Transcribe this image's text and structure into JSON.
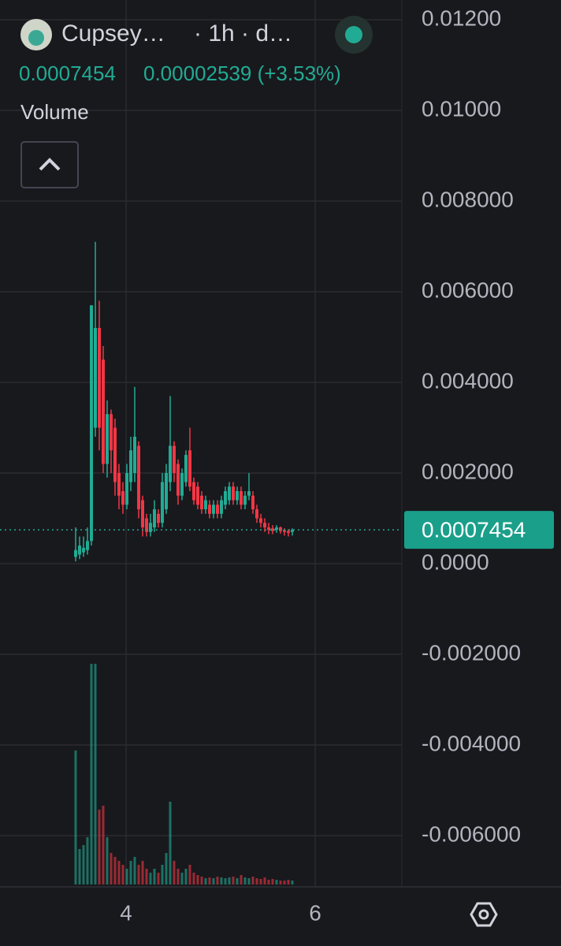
{
  "chart_data": {
    "type": "candlestick",
    "symbol": "Cupsey…",
    "interval": "· 1h · d…",
    "last_price": 0.0007454,
    "change": "0.00002539 (+3.53%)",
    "volume_label": "Volume",
    "up_color": "#22ab94",
    "down_color": "#f23645",
    "grid": true,
    "xlim": [
      2.6667,
      6.9167
    ],
    "xticks": [
      4,
      6
    ],
    "ylim": [
      0.012435,
      -0.00713
    ],
    "yticks": [
      {
        "value": 0.012,
        "label": "0.01200"
      },
      {
        "value": 0.01,
        "label": "0.01000"
      },
      {
        "value": 0.008,
        "label": "0.008000"
      },
      {
        "value": 0.006,
        "label": "0.006000"
      },
      {
        "value": 0.004,
        "label": "0.004000"
      },
      {
        "value": 0.002,
        "label": "0.002000"
      },
      {
        "value": 0,
        "label": "0.0000"
      },
      {
        "value": -0.002,
        "label": "-0.002000"
      },
      {
        "value": -0.004,
        "label": "-0.004000"
      },
      {
        "value": -0.006,
        "label": "-0.006000"
      }
    ],
    "x": [
      3.4667,
      3.5083,
      3.55,
      3.5917,
      3.6333,
      3.675,
      3.7167,
      3.7583,
      3.8,
      3.8417,
      3.8833,
      3.925,
      3.9667,
      4.0083,
      4.05,
      4.0917,
      4.1333,
      4.175,
      4.2167,
      4.2583,
      4.3,
      4.3417,
      4.3833,
      4.425,
      4.4667,
      4.5083,
      4.55,
      4.5917,
      4.6333,
      4.675,
      4.7167,
      4.7583,
      4.8,
      4.8417,
      4.8833,
      4.925,
      4.9667,
      5.0083,
      5.05,
      5.0917,
      5.1333,
      5.175,
      5.2167,
      5.2583,
      5.3,
      5.3417,
      5.3833,
      5.425,
      5.4667,
      5.5083,
      5.55,
      5.5917,
      5.6333,
      5.675,
      5.7167,
      5.7583
    ],
    "open": [
      0.00015,
      0.0002,
      0.00025,
      0.0003,
      0.0005,
      0.003,
      0.0052,
      0.0045,
      0.0022,
      0.0033,
      0.003,
      0.002,
      0.0016,
      0.0013,
      0.0018,
      0.002,
      0.0026,
      0.0014,
      0.001,
      0.0007,
      0.0008,
      0.0011,
      0.0009,
      0.0012,
      0.0018,
      0.0026,
      0.0022,
      0.0015,
      0.0018,
      0.0025,
      0.0018,
      0.0017,
      0.0015,
      0.0012,
      0.0013,
      0.0011,
      0.0013,
      0.0011,
      0.0013,
      0.0014,
      0.0017,
      0.0014,
      0.0016,
      0.0013,
      0.0015,
      0.0015,
      0.0012,
      0.001,
      0.0009,
      0.0008,
      0.00078,
      0.00075,
      0.0008,
      0.00074,
      0.00072,
      0.0007
    ],
    "high": [
      0.0008,
      0.0006,
      0.0006,
      0.0008,
      0.0057,
      0.0071,
      0.0058,
      0.0048,
      0.0036,
      0.0034,
      0.0032,
      0.0022,
      0.0018,
      0.0022,
      0.0028,
      0.0039,
      0.0027,
      0.0015,
      0.0011,
      0.0011,
      0.0014,
      0.0012,
      0.002,
      0.0022,
      0.0037,
      0.0027,
      0.0023,
      0.0021,
      0.0025,
      0.003,
      0.0019,
      0.0018,
      0.0016,
      0.0015,
      0.0014,
      0.0014,
      0.0014,
      0.0015,
      0.0017,
      0.0018,
      0.0018,
      0.0017,
      0.0017,
      0.0016,
      0.002,
      0.0016,
      0.0013,
      0.0011,
      0.001,
      0.0009,
      0.00085,
      0.00085,
      0.00082,
      0.00078,
      0.00076,
      0.00078
    ],
    "low": [
      5e-05,
      0.0001,
      0.00015,
      0.0002,
      0.0004,
      0.0028,
      0.0025,
      0.002,
      0.0019,
      0.002,
      0.0015,
      0.0012,
      0.0011,
      0.0012,
      0.0016,
      0.0018,
      0.001,
      0.0006,
      0.0006,
      0.0006,
      0.0007,
      0.0008,
      0.0008,
      0.0011,
      0.0016,
      0.0018,
      0.0013,
      0.0014,
      0.0017,
      0.0016,
      0.0013,
      0.0012,
      0.0011,
      0.0011,
      0.001,
      0.001,
      0.001,
      0.001,
      0.0012,
      0.0013,
      0.0013,
      0.0013,
      0.0012,
      0.0012,
      0.0014,
      0.0011,
      0.0009,
      0.0008,
      0.0007,
      0.00065,
      0.00065,
      0.00068,
      0.00066,
      0.00062,
      0.0006,
      0.00062
    ],
    "close": [
      0.0003,
      0.0004,
      0.00035,
      0.0005,
      0.0057,
      0.0052,
      0.003,
      0.0022,
      0.0033,
      0.0025,
      0.0018,
      0.0015,
      0.0013,
      0.002,
      0.0025,
      0.0028,
      0.0012,
      0.0008,
      0.0007,
      0.0009,
      0.0012,
      0.0009,
      0.0018,
      0.002,
      0.0026,
      0.002,
      0.0015,
      0.002,
      0.0024,
      0.0017,
      0.0014,
      0.0013,
      0.0012,
      0.0014,
      0.0011,
      0.0013,
      0.0011,
      0.0014,
      0.0016,
      0.0017,
      0.0014,
      0.0016,
      0.0013,
      0.0015,
      0.0016,
      0.0012,
      0.001,
      0.0009,
      0.0008,
      0.00075,
      0.00072,
      0.0008,
      0.00072,
      0.0007,
      0.00068,
      0.0007454
    ],
    "volume": [
      170,
      45,
      50,
      60,
      280,
      280,
      95,
      100,
      60,
      40,
      35,
      30,
      25,
      20,
      30,
      35,
      25,
      30,
      20,
      15,
      20,
      15,
      25,
      40,
      105,
      30,
      20,
      15,
      20,
      25,
      15,
      12,
      10,
      8,
      9,
      8,
      10,
      9,
      8,
      9,
      10,
      8,
      12,
      9,
      8,
      10,
      8,
      7,
      9,
      6,
      7,
      6,
      5,
      5,
      6,
      5
    ]
  }
}
